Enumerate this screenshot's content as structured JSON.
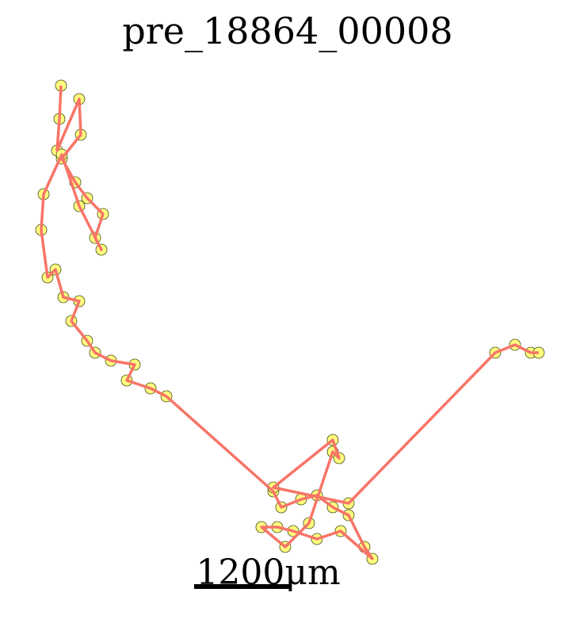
{
  "chart_data": {
    "type": "trajectory",
    "title": "pre_18864_00008",
    "x": [
      770,
      750,
      720,
      1000,
      1020,
      780,
      950,
      1100,
      1300,
      1200,
      1280,
      1000,
      780,
      550,
      520,
      600,
      700,
      800,
      1000,
      900,
      1100,
      1200,
      1400,
      1700,
      1600,
      1900,
      2100,
      3450,
      3550,
      3800,
      4000,
      4200,
      4400,
      4600,
      4700,
      4300,
      4000,
      3700,
      3500,
      3300,
      3600,
      3900,
      4200,
      4280,
      4200,
      3450,
      4400,
      6250,
      6500,
      6700,
      6800
    ],
    "y": [
      6780,
      6360,
      5960,
      6610,
      6160,
      5860,
      5560,
      5360,
      5160,
      4860,
      4710,
      5260,
      5910,
      5410,
      4960,
      4360,
      4460,
      4110,
      4060,
      3810,
      3560,
      3410,
      3310,
      3260,
      3060,
      2960,
      2860,
      1660,
      1460,
      1560,
      1610,
      1460,
      1360,
      960,
      810,
      1160,
      1060,
      1160,
      1210,
      1210,
      960,
      1260,
      2160,
      2080,
      2310,
      1710,
      1510,
      3410,
      3510,
      3410,
      3410
    ],
    "xlim": [
      0,
      7270
    ],
    "ylim": [
      0,
      7860
    ],
    "line_color": "#f87468",
    "marker_color": "#ffff80",
    "marker_edge": "#4a4a10",
    "scale_bar": {
      "value": 1200,
      "label": "1200μm"
    }
  }
}
